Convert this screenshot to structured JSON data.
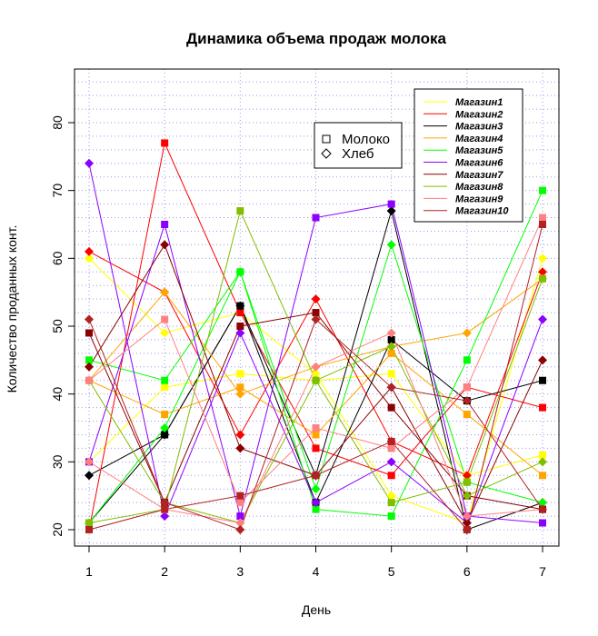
{
  "chart_data": {
    "type": "line",
    "title": "Динамика объема продаж молока",
    "xlabel": "День",
    "ylabel": "Количество проданных конт.",
    "x": [
      1,
      2,
      3,
      4,
      5,
      6,
      7
    ],
    "xlim": [
      1,
      7
    ],
    "ylim": [
      20,
      85
    ],
    "yticks": [
      20,
      30,
      40,
      50,
      60,
      70,
      80
    ],
    "grid": true,
    "legend_position": "top-right",
    "series": [
      {
        "name": "Магазин1",
        "color": "#FFFF00",
        "milk": [
          30,
          41,
          43,
          42,
          43,
          28,
          31
        ],
        "bread": [
          60,
          49,
          52,
          43,
          25,
          21,
          60
        ]
      },
      {
        "name": "Магазин2",
        "color": "#FF0000",
        "milk": [
          20,
          77,
          52,
          32,
          28,
          41,
          38
        ],
        "bread": [
          61,
          55,
          34,
          54,
          33,
          28,
          58
        ]
      },
      {
        "name": "Магазин3",
        "color": "#000000",
        "milk": [
          21,
          34,
          53,
          24,
          48,
          39,
          42
        ],
        "bread": [
          28,
          34,
          53,
          28,
          67,
          20,
          24
        ]
      },
      {
        "name": "Магазин4",
        "color": "#FFA500",
        "milk": [
          42,
          37,
          41,
          34,
          46,
          37,
          28
        ],
        "bread": [
          42,
          55,
          40,
          44,
          47,
          49,
          57
        ]
      },
      {
        "name": "Магазин5",
        "color": "#00FF00",
        "milk": [
          45,
          42,
          58,
          23,
          22,
          45,
          70
        ],
        "bread": [
          21,
          35,
          58,
          26,
          62,
          27,
          24
        ]
      },
      {
        "name": "Магазин6",
        "color": "#8B00FF",
        "milk": [
          30,
          65,
          22,
          66,
          68,
          22,
          21
        ],
        "bread": [
          74,
          22,
          49,
          24,
          30,
          21,
          51
        ]
      },
      {
        "name": "Магазин7",
        "color": "#8B0000",
        "milk": [
          49,
          24,
          50,
          52,
          38,
          25,
          23
        ],
        "bread": [
          44,
          62,
          32,
          28,
          41,
          21,
          45
        ]
      },
      {
        "name": "Магазин8",
        "color": "#7FBF00",
        "milk": [
          21,
          23,
          67,
          42,
          24,
          27,
          57
        ],
        "bread": [
          42,
          24,
          21,
          42,
          47,
          25,
          30
        ]
      },
      {
        "name": "Магазин9",
        "color": "#FF8080",
        "milk": [
          42,
          51,
          24,
          35,
          32,
          41,
          66
        ],
        "bread": [
          30,
          23,
          21,
          44,
          49,
          22,
          23
        ]
      },
      {
        "name": "Магазин10",
        "color": "#B22222",
        "milk": [
          20,
          23,
          25,
          28,
          33,
          20,
          65
        ],
        "bread": [
          51,
          24,
          20,
          51,
          41,
          39,
          23
        ]
      }
    ]
  },
  "legend2": {
    "milk_label": "Молоко",
    "bread_label": "Хлеб"
  }
}
